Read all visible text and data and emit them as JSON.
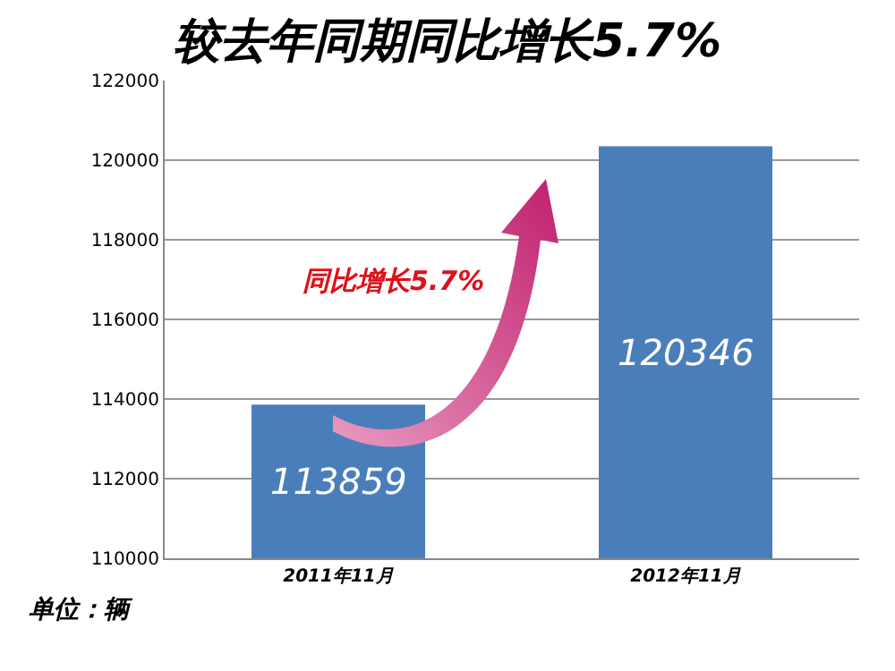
{
  "chart_data": {
    "type": "bar",
    "title": "较去年同期同比增长5.7%",
    "categories": [
      "2011年11月",
      "2012年11月"
    ],
    "values": [
      113859,
      120346
    ],
    "color": "#4a7ebb",
    "ylim": [
      110000,
      122000
    ],
    "yticks": [
      110000,
      112000,
      114000,
      116000,
      118000,
      120000,
      122000
    ],
    "grid": "y",
    "data_labels": true,
    "annotations": [
      "同比增长5.7%",
      "单位：辆"
    ]
  }
}
